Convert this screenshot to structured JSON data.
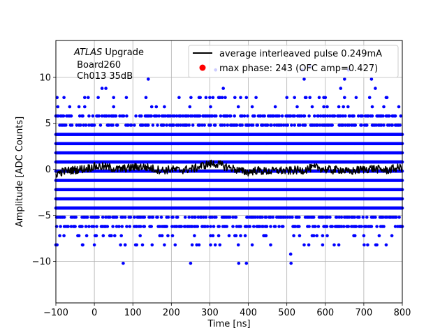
{
  "chart_data": {
    "type": "scatter",
    "xlabel": "Time [ns]",
    "ylabel": "Amplitude [ADC Counts]",
    "xlim": [
      -100,
      800
    ],
    "ylim": [
      -14.5,
      14
    ],
    "xticks": [
      -100,
      0,
      100,
      200,
      300,
      400,
      500,
      600,
      700,
      800
    ],
    "yticks": [
      -10,
      -5,
      0,
      5,
      10
    ],
    "ytick_labels": [
      "−10",
      "−5",
      "0",
      "5",
      "10"
    ],
    "xtick_labels": [
      "−100",
      "0",
      "100",
      "200",
      "300",
      "400",
      "500",
      "600",
      "700",
      "800"
    ],
    "grid": true,
    "legend_position": "top-right",
    "annotation": {
      "italic": "ATLAS",
      "rest": " Upgrade",
      "line2": " Board260",
      "line3": " Ch013 35dB"
    },
    "series": [
      {
        "name": "average interleaved pulse 0.249mA",
        "kind": "line",
        "color": "#000000",
        "mean_level": 0.0,
        "points": [
          [
            -100,
            -0.5
          ],
          [
            -80,
            -0.2
          ],
          [
            -60,
            -0.1
          ],
          [
            -40,
            0.0
          ],
          [
            -20,
            0.1
          ],
          [
            0,
            0.3
          ],
          [
            20,
            0.3
          ],
          [
            40,
            0.2
          ],
          [
            60,
            0.0
          ],
          [
            80,
            0.1
          ],
          [
            100,
            0.2
          ],
          [
            120,
            0.3
          ],
          [
            140,
            0.2
          ],
          [
            160,
            0.0
          ],
          [
            180,
            -0.1
          ],
          [
            200,
            0.0
          ],
          [
            220,
            -0.1
          ],
          [
            240,
            0.0
          ],
          [
            260,
            0.1
          ],
          [
            280,
            0.4
          ],
          [
            300,
            0.6
          ],
          [
            320,
            0.6
          ],
          [
            340,
            0.3
          ],
          [
            360,
            0.1
          ],
          [
            380,
            -0.2
          ],
          [
            400,
            -0.3
          ],
          [
            420,
            -0.1
          ],
          [
            440,
            -0.2
          ],
          [
            460,
            -0.2
          ],
          [
            480,
            -0.1
          ],
          [
            500,
            -0.2
          ],
          [
            520,
            -0.1
          ],
          [
            540,
            -0.1
          ],
          [
            560,
            0.1
          ],
          [
            580,
            0.2
          ],
          [
            600,
            0.0
          ],
          [
            620,
            -0.1
          ],
          [
            640,
            0.0
          ],
          [
            660,
            -0.3
          ],
          [
            680,
            -0.1
          ],
          [
            700,
            0.0
          ],
          [
            720,
            0.1
          ],
          [
            740,
            0.0
          ],
          [
            760,
            -0.1
          ],
          [
            780,
            0.1
          ],
          [
            800,
            0.2
          ]
        ]
      },
      {
        "name": "max phase: 243 (OFC amp=0.427)",
        "kind": "scatter",
        "color": "#ff0000",
        "points": []
      },
      {
        "name": "",
        "kind": "samples",
        "color": "#0000ff",
        "dense_levels": [
          -4.2,
          -3.2,
          -2.2,
          -1.2,
          -0.2,
          0.8,
          1.8,
          2.8,
          3.8
        ],
        "sparse_levels": [
          -6.2,
          -5.2,
          4.8,
          5.8
        ],
        "rare_levels": [
          -8.2,
          -7.2,
          6.8,
          7.8
        ],
        "outliers": [
          [
            -95,
            6.8
          ],
          [
            -90,
            -7.2
          ],
          [
            -40,
            6.8
          ],
          [
            -30,
            -8.2
          ],
          [
            -20,
            -7.2
          ],
          [
            0,
            -8.2
          ],
          [
            10,
            7.8
          ],
          [
            20,
            8.8
          ],
          [
            30,
            8.8
          ],
          [
            40,
            -7.2
          ],
          [
            50,
            7.8
          ],
          [
            70,
            -7.2
          ],
          [
            75,
            -10.2
          ],
          [
            80,
            -8.2
          ],
          [
            140,
            9.8
          ],
          [
            150,
            -8.2
          ],
          [
            170,
            -7.2
          ],
          [
            210,
            -8.2
          ],
          [
            220,
            7.8
          ],
          [
            250,
            -10.2
          ],
          [
            260,
            -7.2
          ],
          [
            300,
            7.8
          ],
          [
            315,
            10.8
          ],
          [
            335,
            8.8
          ],
          [
            340,
            7.8
          ],
          [
            375,
            -10.2
          ],
          [
            395,
            -10.2
          ],
          [
            410,
            -8.2
          ],
          [
            420,
            7.8
          ],
          [
            440,
            -7.2
          ],
          [
            500,
            7.8
          ],
          [
            510,
            -9.2
          ],
          [
            511,
            -10.2
          ],
          [
            520,
            7.8
          ],
          [
            540,
            10.8
          ],
          [
            545,
            9.8
          ],
          [
            550,
            7.8
          ],
          [
            560,
            11.2
          ],
          [
            570,
            -7.2
          ],
          [
            600,
            7.8
          ],
          [
            640,
            8.8
          ],
          [
            650,
            9.8
          ],
          [
            660,
            10.8
          ],
          [
            700,
            -7.2
          ],
          [
            715,
            7.8
          ],
          [
            720,
            9.8
          ],
          [
            730,
            8.8
          ],
          [
            740,
            -7.2
          ],
          [
            760,
            7.8
          ],
          [
            795,
            -6.2
          ]
        ]
      }
    ]
  }
}
